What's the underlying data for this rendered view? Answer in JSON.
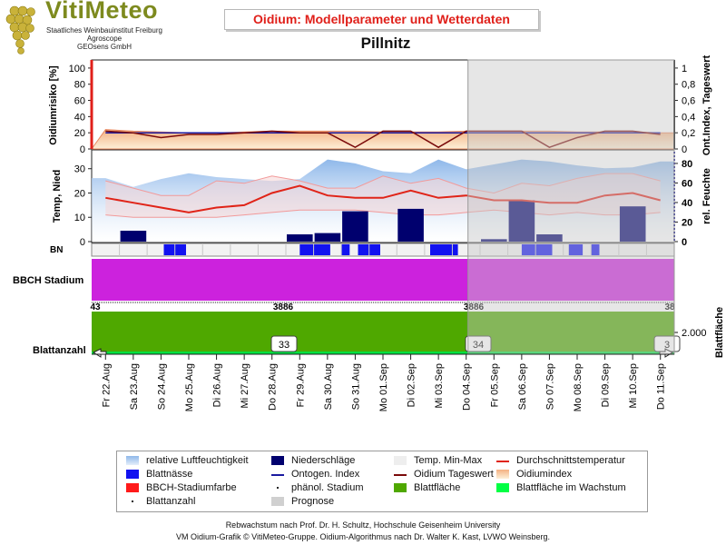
{
  "header": {
    "logo_title": "VitiMeteo",
    "logo_lines": [
      "Staatliches Weinbauinstitut Freiburg",
      "Agroscope",
      "GEOsens GmbH"
    ],
    "title": "Oidium: Modellparameter und Wetterdaten",
    "location": "Pillnitz"
  },
  "chart_data": {
    "type": "line",
    "dates": [
      "Fr 22.Aug",
      "Sa 23.Aug",
      "So 24.Aug",
      "Mo 25.Aug",
      "Di 26.Aug",
      "Mi 27.Aug",
      "Do 28.Aug",
      "Fr 29.Aug",
      "Sa 30.Aug",
      "So 31.Aug",
      "Mo 01.Sep",
      "Di 02.Sep",
      "Mi 03.Sep",
      "Do 04.Sep",
      "Fr 05.Sep",
      "Sa 06.Sep",
      "So 07.Sep",
      "Mo 08.Sep",
      "Di 09.Sep",
      "Mi 10.Sep",
      "Do 11.Sep"
    ],
    "forecast_start": "Fr 05.Sep",
    "panel_risk": {
      "ylabel_left": "Oidiumrisiko [%]",
      "ylabel_right": "Ont.Index, Tageswert",
      "yticks_left": [
        "0",
        "20",
        "40",
        "60",
        "80",
        "100"
      ],
      "yticks_right": [
        "0",
        "0,2",
        "0,4",
        "0,6",
        "0,8",
        "1"
      ],
      "ylim_left": [
        0,
        110
      ],
      "ylim_right": [
        0,
        1.1
      ],
      "oidium_index": [
        24,
        22,
        21,
        20,
        20,
        21,
        22,
        22,
        22,
        22,
        21,
        21,
        21,
        22,
        22,
        22,
        22,
        21,
        21,
        21,
        20
      ],
      "ontogen_index": [
        0.2,
        0.2,
        0.2,
        0.2,
        0.2,
        0.2,
        0.2,
        0.2,
        0.2,
        0.2,
        0.2,
        0.2,
        0.2,
        0.2,
        0.2,
        0.2,
        0.2,
        0.2,
        0.2,
        0.2,
        0.2
      ],
      "tageswert": [
        0.22,
        0.2,
        0.14,
        0.18,
        0.18,
        0.2,
        0.22,
        0.2,
        0.2,
        0.02,
        0.22,
        0.22,
        0.02,
        0.22,
        0.22,
        0.22,
        0.02,
        0.14,
        0.22,
        0.22,
        0.18
      ]
    },
    "panel_weather": {
      "ylabel_left": "Temp, Nied",
      "ylabel_right": "rel. Feuchte",
      "yticks_left": [
        "0",
        "10",
        "20",
        "30"
      ],
      "yticks_right": [
        "0",
        "20",
        "40",
        "60",
        "80"
      ],
      "ylim_left": [
        0,
        37
      ],
      "ylim_right": [
        0,
        92
      ],
      "humidity": [
        65,
        56,
        64,
        70,
        66,
        64,
        62,
        64,
        84,
        80,
        72,
        70,
        84,
        74,
        79,
        84,
        82,
        78,
        75,
        76,
        82
      ],
      "temp_max": [
        25,
        22,
        19,
        19,
        25,
        24,
        27,
        25,
        22,
        22,
        27,
        24,
        26,
        22,
        20,
        24,
        23,
        26,
        28,
        28,
        25
      ],
      "temp_min": [
        11,
        10,
        10,
        10,
        10,
        11,
        12,
        13,
        13,
        13,
        12,
        11,
        11,
        12,
        13,
        12,
        11,
        12,
        11,
        11,
        12
      ],
      "temp_avg": [
        18,
        16,
        14,
        12,
        14,
        15,
        20,
        23,
        19,
        18,
        18,
        21,
        18,
        19,
        17,
        17,
        16,
        16,
        19,
        20,
        17
      ],
      "precip": [
        0,
        4.5,
        0,
        0,
        0,
        0,
        0,
        3,
        3.5,
        12.5,
        0,
        13.5,
        0,
        0,
        1,
        17,
        3,
        0,
        0,
        14.5,
        0
      ]
    },
    "bn_leaf_wetness": [
      [
        2.6,
        3.4
      ],
      [
        7.5,
        8.6
      ],
      [
        9.0,
        9.3
      ],
      [
        9.6,
        10.4
      ],
      [
        12.2,
        13.2
      ],
      [
        15.5,
        16.6
      ],
      [
        17.2,
        17.7
      ],
      [
        18.0,
        18.3
      ]
    ],
    "bbch": {
      "label": "BBCH Stadium",
      "stage_labels": [
        "43",
        "3886",
        "3886",
        "38"
      ],
      "color": "#cc22dd"
    },
    "leaf": {
      "label": "Blattanzahl",
      "ylabel_right": "Blattfläche",
      "ytick_right": "2.000",
      "counts": [
        "33",
        "34",
        "3"
      ],
      "area_color": "#4fa800"
    }
  },
  "legend": [
    {
      "label": "relative Luftfeuchtigkeit",
      "swatch": "humidity"
    },
    {
      "label": "Niederschläge",
      "swatch": "precip"
    },
    {
      "label": "Temp. Min-Max",
      "swatch": "tempband"
    },
    {
      "label": "Durchschnittstemperatur",
      "swatch": "tempavg"
    },
    {
      "label": "Blattnässe",
      "swatch": "bn"
    },
    {
      "label": "Ontogen. Index",
      "swatch": "onto"
    },
    {
      "label": "Oidium Tageswert",
      "swatch": "tages"
    },
    {
      "label": "Oidiumindex",
      "swatch": "oidx"
    },
    {
      "label": "BBCH-Stadiumfarbe",
      "swatch": "bbch"
    },
    {
      "label": "phänol. Stadium",
      "swatch": "dot"
    },
    {
      "label": "Blattfläche",
      "swatch": "leaf"
    },
    {
      "label": "Blattfläche im Wachstum",
      "swatch": "leafgrow"
    },
    {
      "label": "Blattanzahl",
      "swatch": "dot"
    },
    {
      "label": "Prognose",
      "swatch": "prog"
    }
  ],
  "footer": {
    "line1": "Rebwachstum nach Prof. Dr. H. Schultz, Hochschule Geisenheim University",
    "line2": "VM Oidium-Grafik © VitiMeteo-Gruppe. Oidium-Algorithmus nach Dr. Walter K. Kast, LVWO Weinsberg."
  },
  "colors": {
    "accent_red": "#e0201a",
    "precip": "#00006e",
    "bn": "#1212f0",
    "temp_avg": "#e02418",
    "ontogen": "#1a1aa0",
    "tageswert": "#7a0a0a",
    "forecast_overlay": "#c8c8c8"
  }
}
